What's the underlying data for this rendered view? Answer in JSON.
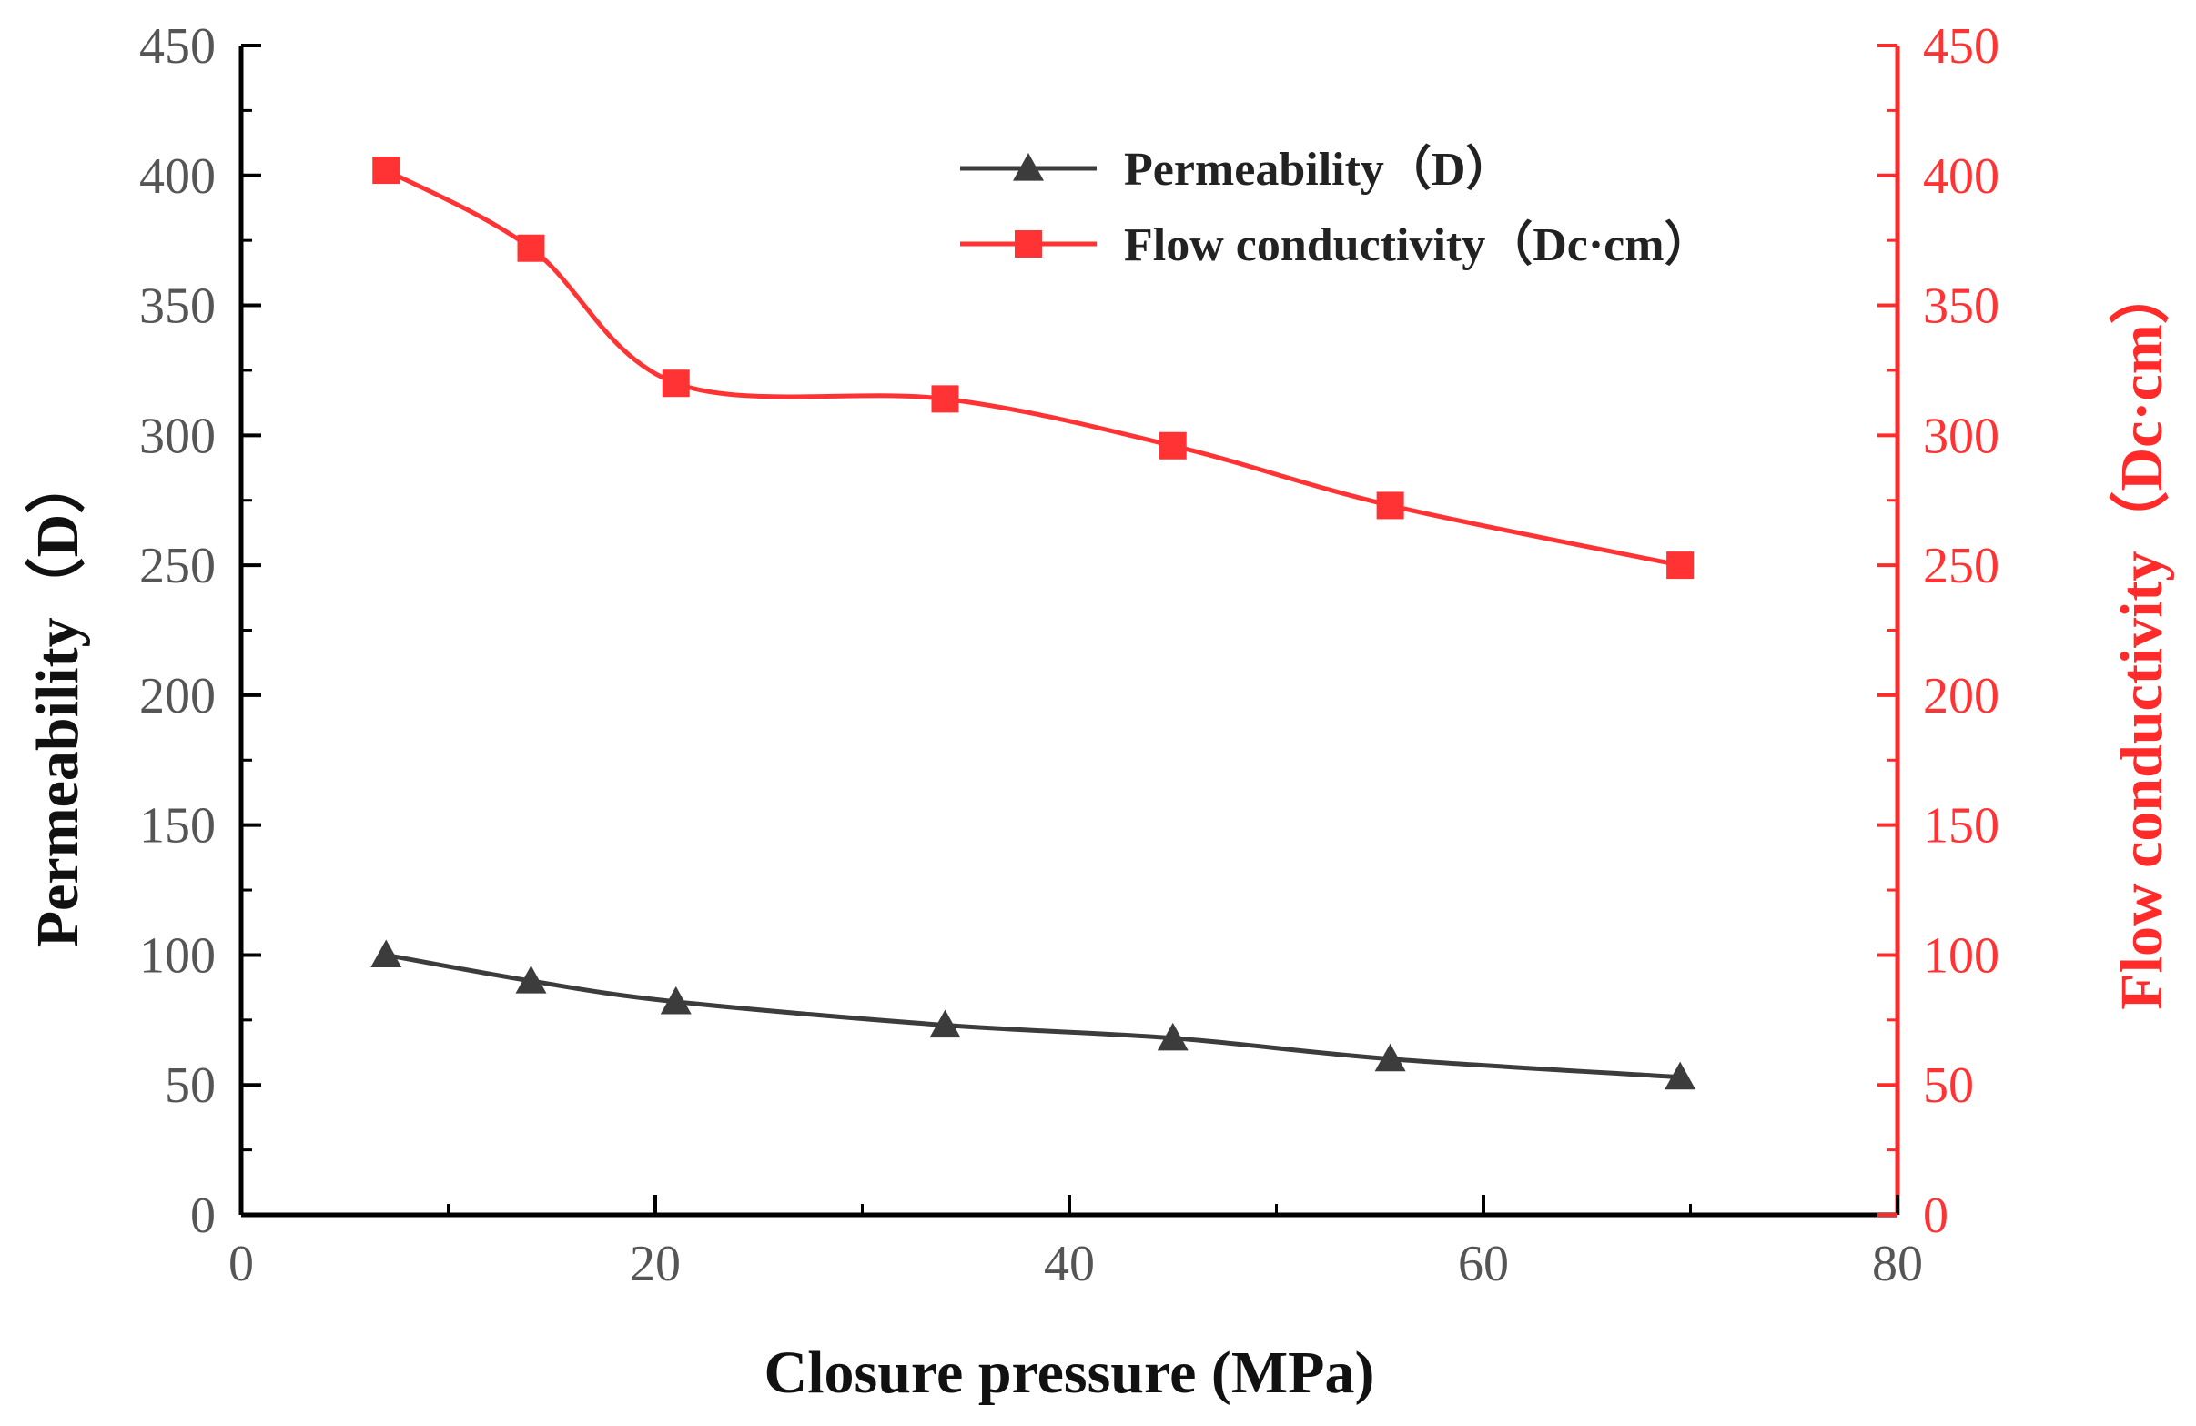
{
  "chart_data": {
    "type": "line",
    "title": "",
    "xlabel": "Closure pressure (MPa)",
    "ylabel_left": "Permeability（D）",
    "ylabel_right": "Flow conductivity（Dc·cm）",
    "xlim": [
      0,
      80
    ],
    "ylim_left": [
      0,
      450
    ],
    "ylim_right": [
      0,
      450
    ],
    "xticks": [
      "0",
      "20",
      "40",
      "60",
      "80"
    ],
    "yticks_left": [
      "0",
      "50",
      "100",
      "150",
      "200",
      "250",
      "300",
      "350",
      "400",
      "450"
    ],
    "yticks_right": [
      "0",
      "50",
      "100",
      "150",
      "200",
      "250",
      "300",
      "350",
      "400",
      "450"
    ],
    "grid": false,
    "legend_position": "top-center",
    "series": [
      {
        "name": "Permeability（D）",
        "axis": "left",
        "marker": "triangle",
        "color": "#3c3c3c",
        "x": [
          7,
          14,
          21,
          34,
          45,
          55.5,
          69.5
        ],
        "values": [
          100,
          90,
          82,
          73,
          68,
          60,
          53
        ]
      },
      {
        "name": "Flow conductivity（Dc·cm）",
        "axis": "right",
        "marker": "square",
        "color": "#ff3333",
        "x": [
          7,
          14,
          21,
          34,
          45,
          55.5,
          69.5
        ],
        "values": [
          402,
          372,
          320,
          314,
          296,
          273,
          250
        ]
      }
    ]
  }
}
